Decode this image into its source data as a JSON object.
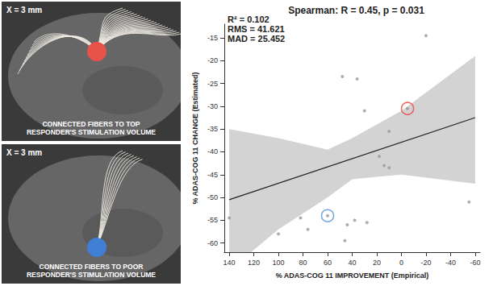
{
  "image_panels": [
    {
      "label": "X = 3 mm",
      "caption": "CONNECTED FIBERS TO TOP RESPONDER'S STIMULATION VOLUME",
      "color": "#e8524a"
    },
    {
      "label": "X = 3 mm",
      "caption": "CONNECTED FIBERS TO POOR RESPONDER'S STIMULATION VOLUME",
      "color": "#3f7fd6"
    }
  ],
  "chart_data": {
    "type": "scatter",
    "title": "Spearman: R = 0.45, p = 0.031",
    "annotations": [
      "R² = 0.102",
      "RMS = 41.621",
      "MAD = 25.452"
    ],
    "x_label": "% ADAS-COG 11 IMPROVEMENT (Empirical)",
    "y_label": "% ADAS-COG 11 CHANGE (Estimated)",
    "color": "#9a9a9a",
    "grid": false,
    "x": [
      140,
      100,
      82,
      76,
      60,
      48,
      46,
      44,
      38,
      36,
      30,
      28,
      18,
      14,
      10,
      10,
      -5,
      -20,
      -55
    ],
    "y": [
      -54.5,
      -58,
      -54.5,
      -57,
      -54,
      -23.5,
      -59.5,
      -56,
      -55,
      -24,
      -31,
      -55.5,
      -41,
      -43,
      -43.5,
      -35.5,
      -30.5,
      -14.5,
      -51
    ],
    "fit": {
      "x": [
        140,
        -60
      ],
      "y": [
        -50.5,
        -32.5
      ],
      "color": "#222222"
    },
    "band": {
      "x": [
        140,
        100,
        60,
        40,
        20,
        0,
        -60
      ],
      "lower": [
        -66,
        -57,
        -50,
        -46,
        -45.5,
        -45,
        -47
      ],
      "upper": [
        -35,
        -37,
        -39.5,
        -37,
        -34,
        -31,
        -19
      ],
      "color": "#d3d3d3"
    },
    "highlights": [
      {
        "x": -5,
        "y": -30.5,
        "color": "#e8413c"
      },
      {
        "x": 60,
        "y": -54,
        "color": "#4a90d9"
      }
    ],
    "xlim": [
      144,
      -64
    ],
    "xticks": [
      140,
      120,
      100,
      80,
      60,
      40,
      20,
      0,
      -20,
      -40,
      -60
    ],
    "ylim": [
      -62,
      -12
    ],
    "yticks": [
      -60,
      -55,
      -50,
      -45,
      -40,
      -35,
      -30,
      -25,
      -20,
      -15
    ]
  }
}
